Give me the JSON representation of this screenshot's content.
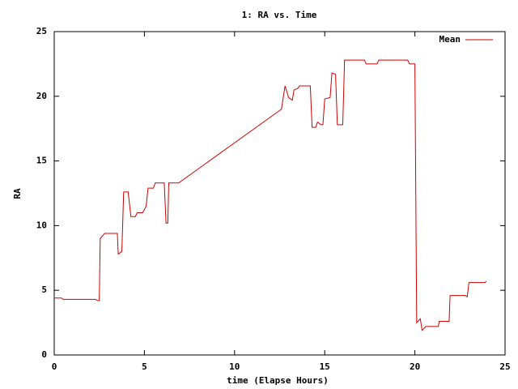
{
  "chart_data": {
    "type": "line",
    "title": "1: RA vs. Time",
    "x_label": "time (Elapse Hours)",
    "y_label": "RA",
    "x": [
      0,
      0.4,
      0.5,
      2.3,
      2.4,
      2.5,
      2.55,
      2.8,
      3.5,
      3.55,
      3.75,
      3.85,
      4.1,
      4.25,
      4.5,
      4.6,
      4.9,
      5.1,
      5.2,
      5.5,
      5.6,
      6.1,
      6.2,
      6.3,
      6.35,
      6.9,
      12.6,
      12.8,
      13.0,
      13.2,
      13.3,
      13.5,
      13.6,
      14.2,
      14.3,
      14.5,
      14.6,
      14.8,
      14.9,
      15.0,
      15.3,
      15.4,
      15.6,
      15.7,
      16.0,
      16.1,
      17.2,
      17.3,
      17.9,
      18.0,
      19.6,
      19.7,
      20.0,
      20.1,
      20.3,
      20.4,
      20.6,
      21.3,
      21.35,
      21.9,
      21.95,
      22.8,
      22.9,
      23.0,
      23.9,
      23.95
    ],
    "series": [
      {
        "name": "Mean",
        "color": "#d00000",
        "values": [
          4.4,
          4.4,
          4.3,
          4.3,
          4.2,
          4.2,
          9.0,
          9.4,
          9.4,
          7.8,
          8.0,
          12.6,
          12.6,
          10.7,
          10.7,
          11.0,
          11.0,
          11.5,
          12.9,
          12.9,
          13.3,
          13.3,
          10.2,
          10.2,
          13.3,
          13.3,
          19.0,
          20.8,
          19.9,
          19.7,
          20.5,
          20.6,
          20.8,
          20.8,
          17.6,
          17.6,
          18.0,
          17.8,
          17.8,
          19.8,
          19.9,
          21.8,
          21.7,
          17.8,
          17.8,
          22.8,
          22.8,
          22.5,
          22.5,
          22.8,
          22.8,
          22.5,
          22.5,
          2.5,
          2.8,
          1.9,
          2.2,
          2.2,
          2.6,
          2.6,
          4.6,
          4.6,
          4.5,
          5.6,
          5.6,
          5.7
        ]
      }
    ],
    "xlim": [
      0,
      25
    ],
    "xticks": [
      0,
      5,
      10,
      15,
      20,
      25
    ],
    "ylim": [
      0,
      25
    ],
    "yticks": [
      0,
      5,
      10,
      15,
      20,
      25
    ],
    "grid": false,
    "legend": "top-right"
  }
}
